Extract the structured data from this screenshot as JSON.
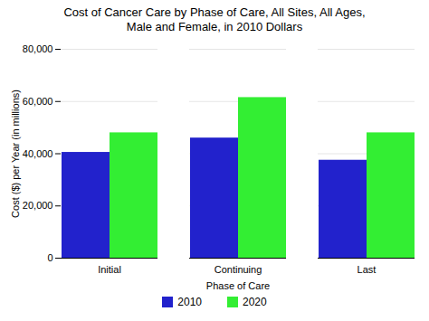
{
  "chart_data": {
    "type": "bar",
    "title": "Cost of Cancer Care by Phase of Care, All Sites, All Ages,\nMale and Female, in 2010 Dollars",
    "categories": [
      "Initial",
      "Continuing",
      "Last"
    ],
    "series": [
      {
        "name": "2010",
        "color": "#2222cc",
        "values": [
          40500,
          46000,
          37500
        ]
      },
      {
        "name": "2020",
        "color": "#33ee33",
        "values": [
          48000,
          61500,
          48000
        ]
      }
    ],
    "xlabel": "Phase of Care",
    "ylabel": "Cost ($) per Year (in millions)",
    "ylim": [
      0,
      80000
    ],
    "yticks": [
      0,
      {
        "value": 20000,
        "label": "20,000"
      },
      {
        "value": 40000,
        "label": "40,000"
      },
      {
        "value": 60000,
        "label": "60,000"
      },
      {
        "value": 80000,
        "label": "80,000"
      }
    ],
    "grid": true,
    "legend": "bottom"
  }
}
